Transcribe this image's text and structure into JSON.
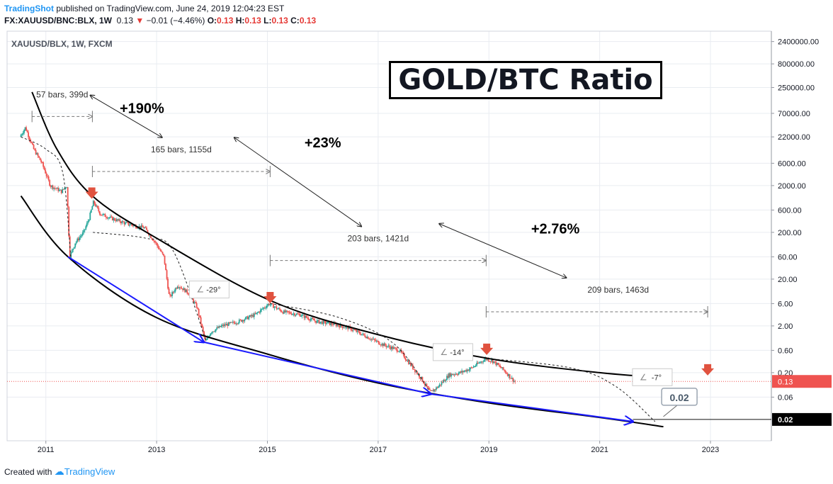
{
  "header": {
    "author": "TradingShot",
    "published_text": " published on TradingView.com, June 24, 2019 12:04:23 EST",
    "symbol": "FX:XAUUSD/BNC:BLX, 1W",
    "last": "0.13",
    "change": "−0.01 (−4.46%)",
    "ohlc_o_label": "O:",
    "ohlc_o": "0.13",
    "ohlc_h_label": "H:",
    "ohlc_h": "0.13",
    "ohlc_l_label": "L:",
    "ohlc_l": "0.13",
    "ohlc_c_label": "C:",
    "ohlc_c": "0.13"
  },
  "footer": {
    "created_with": "Created with",
    "brand": "TradingView"
  },
  "colors": {
    "up": "#26a69a",
    "down": "#ef5350",
    "trend": "#000000",
    "support": "#1a1aff",
    "signal": "#e0523f",
    "grid": "#e9ecf1",
    "price_line": "#ef5350"
  },
  "chart_data": {
    "type": "candlestick",
    "instrument_label": "XAUUSD/BLX, 1W, FXCM",
    "title": "GOLD/BTC Ratio",
    "y_scale": "log",
    "ylim": [
      0.007,
      4000000
    ],
    "xlim": [
      2010.3,
      2024.1
    ],
    "y_ticks": [
      2400000,
      800000,
      250000,
      70000,
      22000,
      6000,
      2000,
      600,
      200,
      60,
      20,
      6,
      2,
      0.6,
      0.2,
      0.06
    ],
    "y_tick_labels": [
      "2400000.00",
      "800000.00",
      "250000.00",
      "70000.00",
      "22000.00",
      "6000.00",
      "2000.00",
      "600.00",
      "200.00",
      "60.00",
      "20.00",
      "6.00",
      "2.00",
      "0.60",
      "0.20",
      "0.06"
    ],
    "x_ticks": [
      2011,
      2013,
      2015,
      2017,
      2019,
      2021,
      2023
    ],
    "x_tick_labels": [
      "2011",
      "2013",
      "2015",
      "2017",
      "2019",
      "2021",
      "2023"
    ],
    "price_path": [
      [
        2010.55,
        22000
      ],
      [
        2010.65,
        35000
      ],
      [
        2010.8,
        12000
      ],
      [
        2010.95,
        6000
      ],
      [
        2011.1,
        2000
      ],
      [
        2011.3,
        1500
      ],
      [
        2011.4,
        2000
      ],
      [
        2011.45,
        60
      ],
      [
        2011.55,
        120
      ],
      [
        2011.7,
        200
      ],
      [
        2011.8,
        400
      ],
      [
        2011.88,
        900
      ],
      [
        2012.0,
        500
      ],
      [
        2012.2,
        400
      ],
      [
        2012.5,
        300
      ],
      [
        2012.8,
        250
      ],
      [
        2013.0,
        120
      ],
      [
        2013.15,
        60
      ],
      [
        2013.25,
        8
      ],
      [
        2013.4,
        15
      ],
      [
        2013.6,
        10
      ],
      [
        2013.75,
        5
      ],
      [
        2013.9,
        0.9
      ],
      [
        2014.0,
        1.5
      ],
      [
        2014.2,
        2.0
      ],
      [
        2014.5,
        2.5
      ],
      [
        2014.8,
        3.5
      ],
      [
        2015.05,
        6
      ],
      [
        2015.3,
        4
      ],
      [
        2015.6,
        3.5
      ],
      [
        2015.9,
        2.5
      ],
      [
        2016.2,
        2.2
      ],
      [
        2016.5,
        1.8
      ],
      [
        2016.8,
        1.2
      ],
      [
        2017.1,
        0.8
      ],
      [
        2017.4,
        0.6
      ],
      [
        2017.6,
        0.3
      ],
      [
        2017.8,
        0.15
      ],
      [
        2017.96,
        0.075
      ],
      [
        2018.1,
        0.1
      ],
      [
        2018.3,
        0.18
      ],
      [
        2018.5,
        0.2
      ],
      [
        2018.7,
        0.25
      ],
      [
        2018.96,
        0.4
      ],
      [
        2019.1,
        0.35
      ],
      [
        2019.3,
        0.22
      ],
      [
        2019.48,
        0.13
      ]
    ],
    "last_price": 0.13,
    "last_price_label": "0.13",
    "target_label": "0.02",
    "target_value": 0.02,
    "resistance_curve": [
      [
        2010.75,
        200000
      ],
      [
        2011.2,
        12000
      ],
      [
        2011.84,
        1200
      ],
      [
        2013,
        150
      ],
      [
        2015.05,
        7
      ],
      [
        2017,
        1.3
      ],
      [
        2019,
        0.4
      ],
      [
        2021,
        0.2
      ],
      [
        2022.25,
        0.155
      ]
    ],
    "support_curve": [
      [
        2010.55,
        1200
      ],
      [
        2011.4,
        60
      ],
      [
        2013,
        3
      ],
      [
        2015,
        0.5
      ],
      [
        2017,
        0.12
      ],
      [
        2019,
        0.045
      ],
      [
        2021,
        0.022
      ],
      [
        2022.15,
        0.014
      ]
    ],
    "support_arrows": [
      {
        "from": [
          2011.4,
          60
        ],
        "to": [
          2013.85,
          0.9
        ]
      },
      {
        "from": [
          2013.85,
          0.9
        ],
        "to": [
          2017.95,
          0.07
        ]
      },
      {
        "from": [
          2017.95,
          0.07
        ],
        "to": [
          2021.6,
          0.018
        ]
      }
    ],
    "arc_projections": [
      [
        [
          2010.55,
          22000
        ],
        [
          2011.0,
          12000
        ],
        [
          2011.3,
          4000
        ],
        [
          2011.45,
          60
        ]
      ],
      [
        [
          2011.85,
          200
        ],
        [
          2012.8,
          150
        ],
        [
          2013.3,
          80
        ],
        [
          2013.9,
          0.9
        ]
      ],
      [
        [
          2015.05,
          6
        ],
        [
          2016.3,
          3
        ],
        [
          2017.3,
          0.8
        ],
        [
          2017.96,
          0.07
        ]
      ],
      [
        [
          2019.0,
          0.4
        ],
        [
          2020.5,
          0.25
        ],
        [
          2021.3,
          0.1
        ],
        [
          2022.0,
          0.018
        ]
      ]
    ],
    "signal_markers": [
      [
        2011.83,
        1200
      ],
      [
        2015.05,
        7
      ],
      [
        2018.96,
        0.55
      ],
      [
        2022.95,
        0.2
      ]
    ],
    "cycles": [
      {
        "measure_label": "57 bars, 399d",
        "gain_label": "+190%",
        "x0": 2010.75,
        "x1": 2011.84,
        "y": 60000
      },
      {
        "measure_label": "165 bars, 1155d",
        "gain_label": "+23%",
        "x0": 2011.84,
        "x1": 2015.05,
        "y": 4000
      },
      {
        "measure_label": "203 bars, 1421d",
        "gain_label": "+2.76%",
        "x0": 2015.05,
        "x1": 2018.95,
        "y": 50
      },
      {
        "measure_label": "209 bars, 1463d",
        "gain_label": "",
        "x0": 2018.95,
        "x1": 2022.95,
        "y": 4
      }
    ],
    "angle_labels": [
      "-29°",
      "-14°",
      "-7°"
    ]
  }
}
